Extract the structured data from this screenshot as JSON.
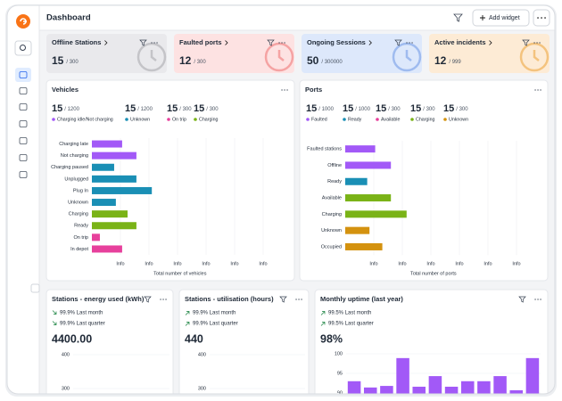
{
  "header": {
    "title": "Dashboard",
    "add_widget": "Add widget"
  },
  "kpis": [
    {
      "title": "Offline Stations",
      "value": 15,
      "total": "/ 300",
      "color": "#e9e9ec",
      "accent": "#c4c4c8"
    },
    {
      "title": "Faulted ports",
      "value": 12,
      "total": "/ 300",
      "color": "#fde2e2",
      "accent": "#f5a3a3"
    },
    {
      "title": "Ongoing Sessions",
      "value": 50,
      "total": "/ 300000",
      "color": "#dde8fb",
      "accent": "#9fbbef"
    },
    {
      "title": "Active incidents",
      "value": 12,
      "total": "/ 999",
      "color": "#fdebd5",
      "accent": "#f4c37e"
    }
  ],
  "panels": [
    {
      "stats": [
        {
          "value": 15,
          "total": "/ 1200",
          "label": "Charging idle/Not charging",
          "color": "#a259f7"
        },
        {
          "value": 15,
          "total": "/ 1200",
          "label": "Unknown",
          "color": "#1a8fb5"
        },
        {
          "value": 15,
          "total": "/ 300",
          "label": "On trip",
          "color": "#e7409c"
        },
        {
          "value": 15,
          "total": "/ 300",
          "label": "Charging",
          "color": "#7ab317"
        }
      ]
    },
    {
      "stats": [
        {
          "value": 15,
          "total": "/ 1000",
          "label": "Faulted",
          "color": "#a259f7"
        },
        {
          "value": 15,
          "total": "/ 1000",
          "label": "Ready",
          "color": "#1a8fb5"
        },
        {
          "value": 15,
          "total": "/ 300",
          "label": "Available",
          "color": "#e7409c"
        },
        {
          "value": 15,
          "total": "/ 300",
          "label": "Charging",
          "color": "#7ab317"
        },
        {
          "value": 15,
          "total": "/ 300",
          "label": "Unknown",
          "color": "#d4920f"
        }
      ]
    },
    {
      "trends": [
        "99.9% Last month",
        "99.9% Last quarter"
      ],
      "trend": "down",
      "headline": "4400.00"
    },
    {
      "trends": [
        "99.9% Last month",
        "99.9% Last quarter"
      ],
      "trend": "up",
      "headline": "440"
    },
    {
      "trends": [
        "99.5% Last month",
        "99.5% Last quarter"
      ],
      "trend": "up",
      "headline": "98%"
    }
  ],
  "chart_data": [
    {
      "type": "hbar",
      "title": "Vehicles",
      "categories": [
        "Charging late",
        "Not charging",
        "Charging paused",
        "Unplugged",
        "Plug In",
        "Unknown",
        "Charging",
        "Ready",
        "On trip",
        "In depot"
      ],
      "values": [
        1.06,
        1.56,
        0.78,
        1.56,
        2.1,
        0.84,
        1.25,
        1.56,
        0.28,
        1.06
      ],
      "colors": [
        "#a259f7",
        "#a259f7",
        "#1a8fb5",
        "#1a8fb5",
        "#1a8fb5",
        "#1a8fb5",
        "#7ab317",
        "#7ab317",
        "#e7409c",
        "#e7409c"
      ],
      "xlim": [
        0,
        6.8
      ],
      "xticks": [
        {
          "value": 1,
          "label": "Info"
        },
        {
          "value": 2,
          "label": "Info"
        },
        {
          "value": 3,
          "label": "Info"
        },
        {
          "value": 4,
          "label": "Info"
        },
        {
          "value": 5,
          "label": "Info"
        },
        {
          "value": 6,
          "label": "Info"
        }
      ],
      "x_label": "Total number of vehicles",
      "grid": true
    },
    {
      "type": "hbar",
      "title": "Ports",
      "categories": [
        "Faulted stations",
        "Offline",
        "Ready",
        "Available",
        "Charging",
        "Unknown",
        "Occupied"
      ],
      "values": [
        1.05,
        1.6,
        0.77,
        1.6,
        2.15,
        0.85,
        1.3
      ],
      "colors": [
        "#a259f7",
        "#a259f7",
        "#1a8fb5",
        "#7ab317",
        "#7ab317",
        "#d4920f",
        "#d4920f"
      ],
      "xlim": [
        0,
        6.8
      ],
      "xticks": [
        {
          "value": 1,
          "label": "Info"
        },
        {
          "value": 2,
          "label": "Info"
        },
        {
          "value": 3,
          "label": "Info"
        },
        {
          "value": 4,
          "label": "Info"
        },
        {
          "value": 5,
          "label": "Info"
        },
        {
          "value": 6,
          "label": "Info"
        }
      ],
      "x_label": "Total number of ports",
      "grid": true
    },
    {
      "type": "bar",
      "title": "Stations - energy used (kWh)",
      "ylim": [
        300,
        400
      ],
      "yticks": [
        400,
        300
      ],
      "grid": true
    },
    {
      "type": "bar",
      "title": "Stations - utilisation (hours)",
      "ylim": [
        300,
        400
      ],
      "yticks": [
        400,
        300
      ],
      "grid": true
    },
    {
      "type": "bar",
      "title": "Monthly uptime (last year)",
      "categories": [
        null,
        null,
        null,
        null,
        null,
        null,
        null,
        null,
        null,
        null,
        null,
        null
      ],
      "values": [
        93,
        91.4,
        91.8,
        98.9,
        91.6,
        94.3,
        91.6,
        93,
        93,
        94.3,
        90.7,
        98.9
      ],
      "color": "#a259f7",
      "ylim": [
        90,
        100
      ],
      "yticks": [
        100,
        95,
        90
      ],
      "grid": true
    }
  ]
}
